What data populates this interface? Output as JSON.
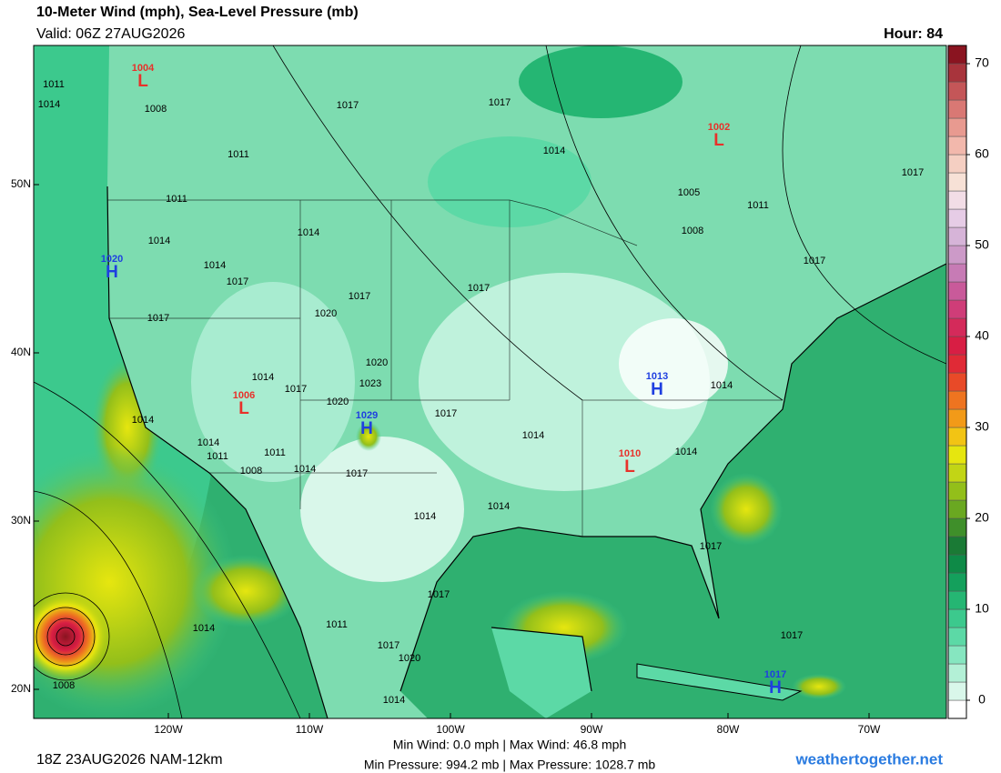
{
  "header": {
    "title": "10-Meter Wind (mph), Sea-Level Pressure (mb)",
    "valid": "Valid: 06Z 27AUG2026",
    "hour": "Hour: 84"
  },
  "map": {
    "lat_labels": [
      "50N",
      "40N",
      "30N",
      "20N"
    ],
    "lon_labels": [
      "120W",
      "110W",
      "100W",
      "90W",
      "80W",
      "70W"
    ],
    "centers": [
      {
        "symbol": "L",
        "value": "1004"
      },
      {
        "symbol": "L",
        "value": "1002"
      },
      {
        "symbol": "H",
        "value": "1020"
      },
      {
        "symbol": "L",
        "value": "1006"
      },
      {
        "symbol": "H",
        "value": "1029"
      },
      {
        "symbol": "H",
        "value": "1013"
      },
      {
        "symbol": "L",
        "value": "1010"
      },
      {
        "symbol": "H",
        "value": "1017"
      }
    ],
    "isobar_labels": [
      "1011",
      "1014",
      "1008",
      "1011",
      "1011",
      "1014",
      "1014",
      "1014",
      "1017",
      "1017",
      "1017",
      "1014",
      "1005",
      "1011",
      "1008",
      "1017",
      "1017",
      "1017",
      "1017",
      "1020",
      "1017",
      "1020",
      "1023",
      "1014",
      "1017",
      "1020",
      "1017",
      "1014",
      "1014",
      "1011",
      "1011",
      "1008",
      "1014",
      "1017",
      "1014",
      "1014",
      "1014",
      "1014",
      "1014",
      "1017",
      "1017",
      "1011",
      "1014",
      "1017",
      "1020",
      "1014",
      "1008",
      "1017"
    ]
  },
  "colorbar": {
    "lim": [
      -2,
      72
    ],
    "ticks": [
      0,
      10,
      20,
      30,
      40,
      50,
      60,
      70
    ],
    "colors": [
      "#ffffff",
      "#d9f7ea",
      "#b3f0d6",
      "#86e6c0",
      "#5cd9a6",
      "#3cc98d",
      "#25b673",
      "#14a05c",
      "#0e8a47",
      "#1a7a35",
      "#3f8f2a",
      "#6aa821",
      "#93bf1a",
      "#c2d515",
      "#e6e60f",
      "#f2c414",
      "#f29a18",
      "#ee7420",
      "#e84a28",
      "#e02a36",
      "#d81e44",
      "#d42a5a",
      "#cf3d78",
      "#c95a9a",
      "#c77bb5",
      "#cc9ac8",
      "#d6b4d8",
      "#e6cce6",
      "#f2dde6",
      "#f7e1d6",
      "#f5cfc2",
      "#f2b8ac",
      "#e89a90",
      "#d97874",
      "#c45658",
      "#a8343c",
      "#8a1420"
    ]
  },
  "footer": {
    "run": "18Z 23AUG2026 NAM-12km",
    "wind": "Min Wind:  0.0 mph | Max Wind:  46.8 mph",
    "pressure": "Min Pressure: 994.2 mb | Max Pressure: 1028.7 mb",
    "site": "weathertogether.net"
  }
}
